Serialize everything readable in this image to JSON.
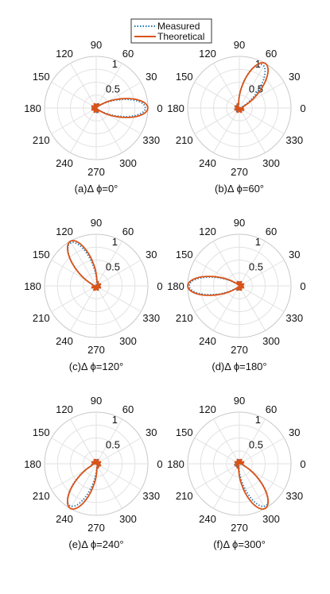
{
  "legend": {
    "items": [
      {
        "label": "Measured",
        "color": "#1f77b4",
        "style": "dotted"
      },
      {
        "label": "Theoretical",
        "color": "#d95319",
        "style": "solid"
      }
    ]
  },
  "chart_data": [
    {
      "type": "polar",
      "caption": "(a)Δ ϕ=0°",
      "steer_deg": 0,
      "angle_ticks": [
        0,
        30,
        60,
        90,
        120,
        150,
        180,
        210,
        240,
        270,
        300,
        330
      ],
      "angle_tick_labels": [
        "0",
        "30",
        "60",
        "90",
        "120",
        "150",
        "180",
        "210",
        "240",
        "270",
        "300",
        "330"
      ],
      "r_ticks": [
        0.5,
        1
      ],
      "r_tick_labels": [
        "0.5",
        "1"
      ],
      "rlim": [
        0,
        1
      ],
      "series": [
        {
          "label_ref": "Measured",
          "peak_deg": 0,
          "peak_r": 0.95
        },
        {
          "label_ref": "Theoretical",
          "peak_deg": 0,
          "peak_r": 1.0
        }
      ]
    },
    {
      "type": "polar",
      "caption": "(b)Δ ϕ=60°",
      "steer_deg": 60,
      "angle_ticks": [
        0,
        30,
        60,
        90,
        120,
        150,
        180,
        210,
        240,
        270,
        300,
        330
      ],
      "angle_tick_labels": [
        "0",
        "30",
        "60",
        "90",
        "120",
        "150",
        "180",
        "210",
        "240",
        "270",
        "300",
        "330"
      ],
      "r_ticks": [
        0.5,
        1
      ],
      "r_tick_labels": [
        "0.5",
        "1"
      ],
      "rlim": [
        0,
        1
      ],
      "series": [
        {
          "label_ref": "Measured",
          "peak_deg": 62,
          "peak_r": 0.95
        },
        {
          "label_ref": "Theoretical",
          "peak_deg": 60,
          "peak_r": 1.0
        }
      ]
    },
    {
      "type": "polar",
      "caption": "(c)Δ ϕ=120°",
      "steer_deg": 120,
      "angle_ticks": [
        0,
        30,
        60,
        90,
        120,
        150,
        180,
        210,
        240,
        270,
        300,
        330
      ],
      "angle_tick_labels": [
        "0",
        "30",
        "60",
        "90",
        "120",
        "150",
        "180",
        "210",
        "240",
        "270",
        "300",
        "330"
      ],
      "r_ticks": [
        0.5,
        1
      ],
      "r_tick_labels": [
        "0.5",
        "1"
      ],
      "rlim": [
        0,
        1
      ],
      "series": [
        {
          "label_ref": "Measured",
          "peak_deg": 121,
          "peak_r": 0.97
        },
        {
          "label_ref": "Theoretical",
          "peak_deg": 120,
          "peak_r": 1.0
        }
      ]
    },
    {
      "type": "polar",
      "caption": "(d)Δ ϕ=180°",
      "steer_deg": 180,
      "angle_ticks": [
        0,
        30,
        60,
        90,
        120,
        150,
        180,
        210,
        240,
        270,
        300,
        330
      ],
      "angle_tick_labels": [
        "0",
        "30",
        "60",
        "90",
        "120",
        "150",
        "180",
        "210",
        "240",
        "270",
        "300",
        "330"
      ],
      "r_ticks": [
        0.5,
        1
      ],
      "r_tick_labels": [
        "0.5",
        "1"
      ],
      "rlim": [
        0,
        1
      ],
      "series": [
        {
          "label_ref": "Measured",
          "peak_deg": 180,
          "peak_r": 0.97
        },
        {
          "label_ref": "Theoretical",
          "peak_deg": 180,
          "peak_r": 1.0
        }
      ]
    },
    {
      "type": "polar",
      "caption": "(e)Δ ϕ=240°",
      "steer_deg": 240,
      "angle_ticks": [
        0,
        30,
        60,
        90,
        120,
        150,
        180,
        210,
        240,
        270,
        300,
        330
      ],
      "angle_tick_labels": [
        "0",
        "30",
        "60",
        "90",
        "120",
        "150",
        "180",
        "210",
        "240",
        "270",
        "300",
        "330"
      ],
      "r_ticks": [
        0.5,
        1
      ],
      "r_tick_labels": [
        "0.5",
        "1"
      ],
      "rlim": [
        0,
        1
      ],
      "series": [
        {
          "label_ref": "Measured",
          "peak_deg": 238,
          "peak_r": 0.96
        },
        {
          "label_ref": "Theoretical",
          "peak_deg": 240,
          "peak_r": 1.0
        }
      ]
    },
    {
      "type": "polar",
      "caption": "(f)Δ ϕ=300°",
      "steer_deg": 300,
      "angle_ticks": [
        0,
        30,
        60,
        90,
        120,
        150,
        180,
        210,
        240,
        270,
        300,
        330
      ],
      "angle_tick_labels": [
        "0",
        "30",
        "60",
        "90",
        "120",
        "150",
        "180",
        "210",
        "240",
        "270",
        "300",
        "330"
      ],
      "r_ticks": [
        0.5,
        1
      ],
      "r_tick_labels": [
        "0.5",
        "1"
      ],
      "rlim": [
        0,
        1
      ],
      "series": [
        {
          "label_ref": "Measured",
          "peak_deg": 302,
          "peak_r": 0.96
        },
        {
          "label_ref": "Theoretical",
          "peak_deg": 300,
          "peak_r": 1.0
        }
      ]
    }
  ]
}
